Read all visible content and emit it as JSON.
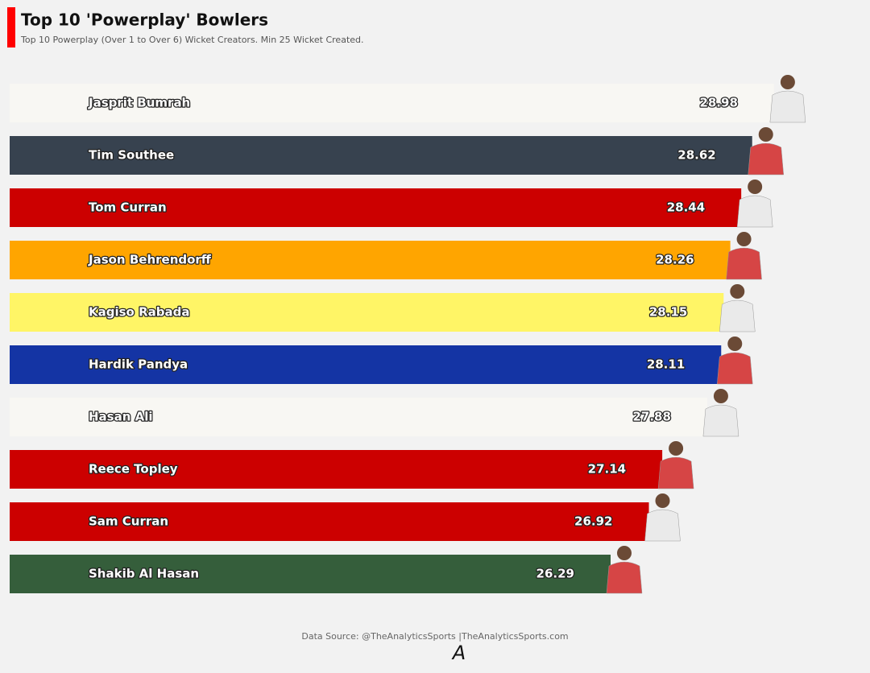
{
  "chart_data": {
    "type": "barh",
    "title": "Top 10 'Powerplay' Bowlers",
    "subtitle": "Top 10 Powerplay (Over 1 to Over 6) Wicket Creators. Min 25 Wicket Created.",
    "categories": [
      "Jasprit Bumrah",
      "Tim Southee",
      "Tom Curran",
      "Jason Behrendorff",
      "Kagiso Rabada",
      "Hardik Pandya",
      "Hasan Ali",
      "Reece Topley",
      "Sam Curran",
      "Shakib Al Hasan"
    ],
    "values": [
      28.98,
      28.62,
      28.44,
      28.26,
      28.15,
      28.11,
      27.88,
      27.14,
      26.92,
      26.29
    ],
    "colors": [
      "#f8f7f3",
      "#37424f",
      "#cc0000",
      "#ffa500",
      "#fff566",
      "#1434a4",
      "#f8f7f3",
      "#cc0000",
      "#cc0000",
      "#355e3b"
    ],
    "xlim": [
      16.4,
      30.4
    ],
    "source": "Data Source: @TheAnalyticsSports |TheAnalyticsSports.com",
    "logo": "A"
  }
}
